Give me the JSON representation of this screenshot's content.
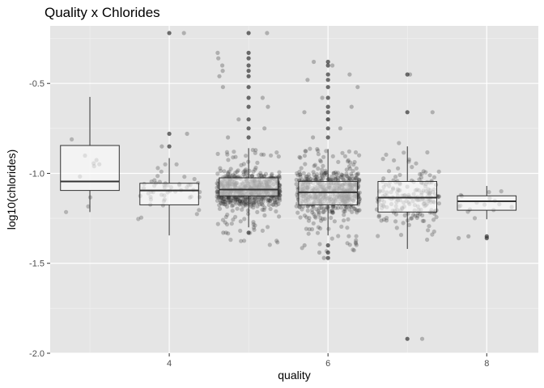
{
  "chart_data": {
    "type": "boxplot-with-jitter",
    "title": "Quality x Chlorides",
    "xlabel": "quality",
    "ylabel": "log10(chlorides)",
    "xlim": [
      2.5,
      8.65
    ],
    "ylim": [
      -2.0,
      -0.18
    ],
    "x_ticks": [
      4,
      6,
      8
    ],
    "x_tick_labels": [
      "4",
      "6",
      "8"
    ],
    "y_ticks": [
      -2.0,
      -1.5,
      -1.0,
      -0.5
    ],
    "y_tick_labels": [
      "-2.0",
      "-1.5",
      "-1.0",
      "-0.5"
    ],
    "grid": true,
    "panel_background": "#e5e5e5",
    "point_color": "#333333",
    "box_fill": "#ffffff",
    "groups": [
      {
        "quality": 3,
        "n": 10,
        "q1": -1.095,
        "median": -1.045,
        "q3": -0.845,
        "whisker_low": -1.215,
        "whisker_high": -0.575,
        "jitter_min": -1.215,
        "jitter_max": -0.575,
        "outliers": []
      },
      {
        "quality": 4,
        "n": 53,
        "q1": -1.175,
        "median": -1.095,
        "q3": -1.055,
        "whisker_low": -1.345,
        "whisker_high": -0.915,
        "jitter_min": -1.3,
        "jitter_max": -0.95,
        "outliers": [
          -0.22,
          -0.78,
          -0.85
        ]
      },
      {
        "quality": 5,
        "n": 681,
        "q1": -1.125,
        "median": -1.09,
        "q3": -1.025,
        "whisker_low": -1.3,
        "whisker_high": -0.86,
        "jitter_min": -1.4,
        "jitter_max": -0.86,
        "outliers": [
          -0.22,
          -0.33,
          -0.36,
          -0.4,
          -0.43,
          -0.46,
          -0.52,
          -0.58,
          -0.63,
          -0.7,
          -0.75,
          -0.8,
          -1.33
        ]
      },
      {
        "quality": 6,
        "n": 638,
        "q1": -1.175,
        "median": -1.105,
        "q3": -1.045,
        "whisker_low": -1.345,
        "whisker_high": -0.865,
        "jitter_min": -1.45,
        "jitter_max": -0.86,
        "outliers": [
          -0.38,
          -0.4,
          -0.45,
          -0.48,
          -0.52,
          -0.58,
          -0.63,
          -0.66,
          -0.7,
          -0.75,
          -0.8,
          -1.4,
          -1.44,
          -1.47
        ]
      },
      {
        "quality": 7,
        "n": 199,
        "q1": -1.215,
        "median": -1.135,
        "q3": -1.045,
        "whisker_low": -1.42,
        "whisker_high": -0.85,
        "jitter_min": -1.38,
        "jitter_max": -0.82,
        "outliers": [
          -0.45,
          -0.66,
          -1.92
        ]
      },
      {
        "quality": 8,
        "n": 18,
        "q1": -1.205,
        "median": -1.155,
        "q3": -1.125,
        "whisker_low": -1.255,
        "whisker_high": -1.07,
        "jitter_min": -1.25,
        "jitter_max": -1.07,
        "outliers": [
          -1.35,
          -1.36
        ]
      }
    ]
  }
}
